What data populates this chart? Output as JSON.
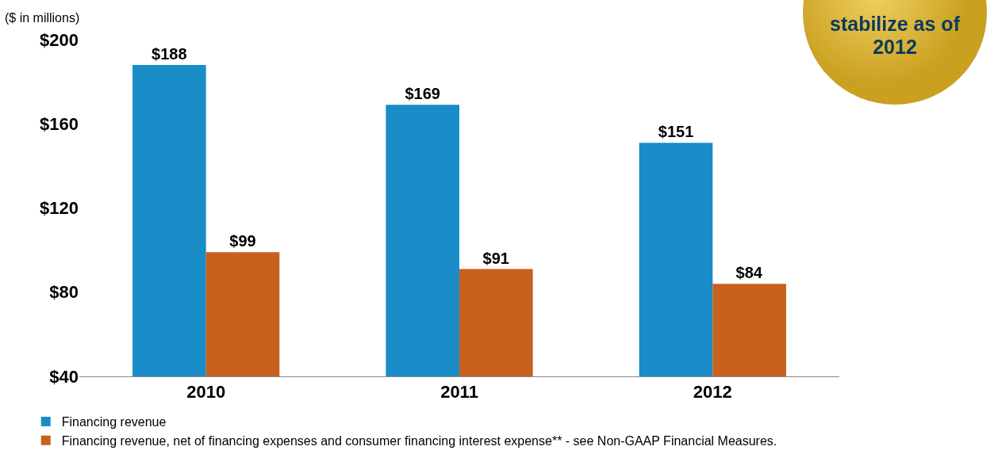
{
  "chart_data": {
    "type": "bar",
    "categories": [
      "2010",
      "2011",
      "2012"
    ],
    "series": [
      {
        "name": "Financing revenue",
        "color": "#1a8cc8",
        "values": [
          188,
          169,
          151
        ],
        "value_labels": [
          "$188",
          "$169",
          "$151"
        ]
      },
      {
        "name": "Financing revenue, net of financing expenses and consumer financing interest expense** - see Non-GAAP Financial Measures.",
        "color": "#c8601e",
        "values": [
          99,
          91,
          84
        ],
        "value_labels": [
          "$99",
          "$91",
          "$84"
        ]
      }
    ],
    "ylim": [
      40,
      200
    ],
    "yticks": [
      {
        "value": 40,
        "label": "$40"
      },
      {
        "value": 80,
        "label": "$80"
      },
      {
        "value": 120,
        "label": "$120"
      },
      {
        "value": 160,
        "label": "$160"
      },
      {
        "value": 200,
        "label": "$200"
      }
    ],
    "grid": false,
    "legend": "bottom left",
    "annotations": [
      "($ in millions)",
      "stabilize as of 2012"
    ]
  }
}
